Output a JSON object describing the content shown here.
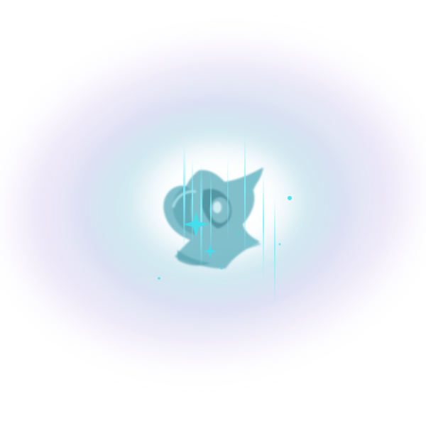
{
  "effect": {
    "icon": "spirit-flame-emblem",
    "colors": {
      "background": "#ffffff",
      "outer_haze": "#d9d2f0",
      "inner_glow": "#bfe6ee",
      "emblem_fill": "#6fb7c4",
      "emblem_dark": "#4e8f9b",
      "light_streak": "#7ff2ff",
      "spark": "#3fe0f0"
    }
  }
}
